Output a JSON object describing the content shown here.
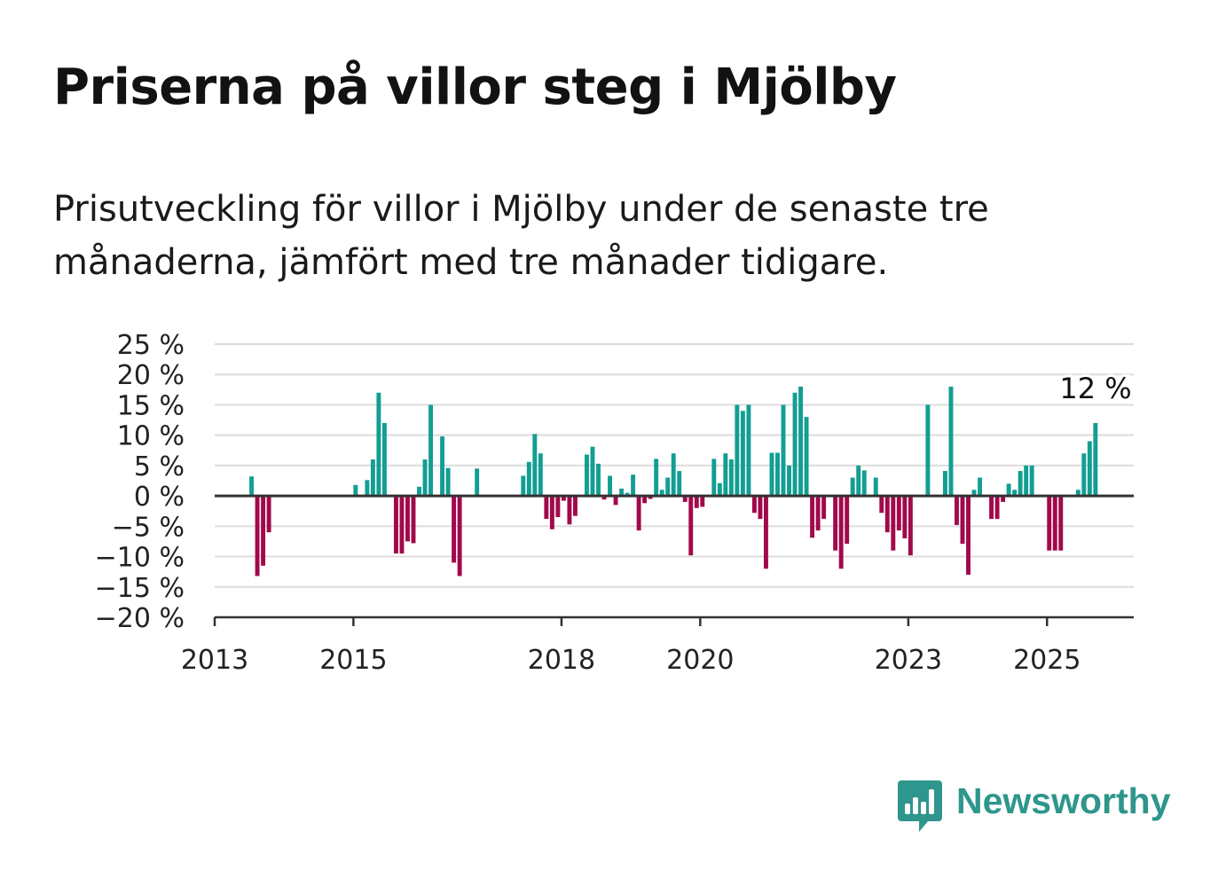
{
  "title": "Priserna på villor steg i Mjölby",
  "subtitle": "Prisutveckling för villor i Mjölby under de senaste tre månaderna, jämfört med tre månader tidigare.",
  "brand": {
    "name": "Newsworthy",
    "color": "#2e968c",
    "icon": "newsworthy-bar-chart-logo-icon"
  },
  "colors": {
    "positive": "#139e93",
    "negative": "#a1094a",
    "grid": "#dcdcdc",
    "axis": "#333333",
    "text": "#222222"
  },
  "chart_data": {
    "type": "bar",
    "title": "Priserna på villor steg i Mjölby",
    "xlabel": "",
    "ylabel": "",
    "ylim": [
      -20,
      25
    ],
    "yticks": [
      25,
      20,
      15,
      10,
      5,
      0,
      -5,
      -10,
      -15,
      -20
    ],
    "ytick_labels": [
      "25 %",
      "20 %",
      "15 %",
      "10 %",
      "5 %",
      "0 %",
      "−5 %",
      "−10 %",
      "−15 %",
      "−20 %"
    ],
    "xlim": [
      2013,
      2026.25
    ],
    "xticks": [
      2013,
      2015,
      2018,
      2020,
      2023,
      2025
    ],
    "xtick_labels": [
      "2013",
      "2015",
      "2018",
      "2020",
      "2023",
      "2025"
    ],
    "grid": true,
    "last_value_label": "12 %",
    "points": [
      {
        "x": "2013-07",
        "y": 3.2
      },
      {
        "x": "2013-08",
        "y": -13.2
      },
      {
        "x": "2013-09",
        "y": -11.5
      },
      {
        "x": "2013-10",
        "y": -6.0
      },
      {
        "x": "2015-01",
        "y": 1.8
      },
      {
        "x": "2015-03",
        "y": 2.6
      },
      {
        "x": "2015-04",
        "y": 6.0
      },
      {
        "x": "2015-05",
        "y": 17.0
      },
      {
        "x": "2015-06",
        "y": 12.0
      },
      {
        "x": "2015-08",
        "y": -9.5
      },
      {
        "x": "2015-09",
        "y": -9.5
      },
      {
        "x": "2015-10",
        "y": -7.5
      },
      {
        "x": "2015-11",
        "y": -7.8
      },
      {
        "x": "2015-12",
        "y": 1.5
      },
      {
        "x": "2016-01",
        "y": 6.0
      },
      {
        "x": "2016-02",
        "y": 15.0
      },
      {
        "x": "2016-04",
        "y": 9.8
      },
      {
        "x": "2016-05",
        "y": 4.6
      },
      {
        "x": "2016-06",
        "y": -11.0
      },
      {
        "x": "2016-07",
        "y": -13.2
      },
      {
        "x": "2016-10",
        "y": 4.5
      },
      {
        "x": "2017-06",
        "y": 3.3
      },
      {
        "x": "2017-07",
        "y": 5.6
      },
      {
        "x": "2017-08",
        "y": 10.2
      },
      {
        "x": "2017-09",
        "y": 7.0
      },
      {
        "x": "2017-10",
        "y": -3.8
      },
      {
        "x": "2017-11",
        "y": -5.5
      },
      {
        "x": "2017-12",
        "y": -3.5
      },
      {
        "x": "2018-01",
        "y": -0.8
      },
      {
        "x": "2018-02",
        "y": -4.7
      },
      {
        "x": "2018-03",
        "y": -3.3
      },
      {
        "x": "2018-05",
        "y": 6.8
      },
      {
        "x": "2018-06",
        "y": 8.1
      },
      {
        "x": "2018-07",
        "y": 5.3
      },
      {
        "x": "2018-08",
        "y": -0.6
      },
      {
        "x": "2018-09",
        "y": 3.3
      },
      {
        "x": "2018-10",
        "y": -1.5
      },
      {
        "x": "2018-11",
        "y": 1.2
      },
      {
        "x": "2018-12",
        "y": 0.5
      },
      {
        "x": "2019-01",
        "y": 3.5
      },
      {
        "x": "2019-02",
        "y": -5.7
      },
      {
        "x": "2019-03",
        "y": -1.2
      },
      {
        "x": "2019-04",
        "y": -0.5
      },
      {
        "x": "2019-05",
        "y": 6.1
      },
      {
        "x": "2019-06",
        "y": 1.0
      },
      {
        "x": "2019-07",
        "y": 3.0
      },
      {
        "x": "2019-08",
        "y": 7.0
      },
      {
        "x": "2019-09",
        "y": 4.1
      },
      {
        "x": "2019-10",
        "y": -1.0
      },
      {
        "x": "2019-11",
        "y": -9.8
      },
      {
        "x": "2019-12",
        "y": -2.0
      },
      {
        "x": "2020-01",
        "y": -1.8
      },
      {
        "x": "2020-03",
        "y": 6.1
      },
      {
        "x": "2020-04",
        "y": 2.1
      },
      {
        "x": "2020-05",
        "y": 7.0
      },
      {
        "x": "2020-06",
        "y": 6.0
      },
      {
        "x": "2020-07",
        "y": 15.0
      },
      {
        "x": "2020-08",
        "y": 14.0
      },
      {
        "x": "2020-09",
        "y": 15.0
      },
      {
        "x": "2020-10",
        "y": -2.8
      },
      {
        "x": "2020-11",
        "y": -3.8
      },
      {
        "x": "2020-12",
        "y": -12.0
      },
      {
        "x": "2021-01",
        "y": 7.1
      },
      {
        "x": "2021-02",
        "y": 7.1
      },
      {
        "x": "2021-03",
        "y": 15.0
      },
      {
        "x": "2021-04",
        "y": 5.0
      },
      {
        "x": "2021-05",
        "y": 17.0
      },
      {
        "x": "2021-06",
        "y": 18.0
      },
      {
        "x": "2021-07",
        "y": 13.0
      },
      {
        "x": "2021-08",
        "y": -6.9
      },
      {
        "x": "2021-09",
        "y": -5.7
      },
      {
        "x": "2021-10",
        "y": -3.8
      },
      {
        "x": "2021-12",
        "y": -9.0
      },
      {
        "x": "2022-01",
        "y": -12.0
      },
      {
        "x": "2022-02",
        "y": -7.9
      },
      {
        "x": "2022-03",
        "y": 3.0
      },
      {
        "x": "2022-04",
        "y": 5.0
      },
      {
        "x": "2022-05",
        "y": 4.2
      },
      {
        "x": "2022-07",
        "y": 3.0
      },
      {
        "x": "2022-08",
        "y": -2.8
      },
      {
        "x": "2022-09",
        "y": -6.0
      },
      {
        "x": "2022-10",
        "y": -9.0
      },
      {
        "x": "2022-11",
        "y": -5.7
      },
      {
        "x": "2022-12",
        "y": -7.0
      },
      {
        "x": "2023-01",
        "y": -9.8
      },
      {
        "x": "2023-04",
        "y": 15.0
      },
      {
        "x": "2023-07",
        "y": 4.1
      },
      {
        "x": "2023-08",
        "y": 18.0
      },
      {
        "x": "2023-09",
        "y": -4.8
      },
      {
        "x": "2023-10",
        "y": -7.9
      },
      {
        "x": "2023-11",
        "y": -13.0
      },
      {
        "x": "2023-12",
        "y": 1.0
      },
      {
        "x": "2024-01",
        "y": 3.0
      },
      {
        "x": "2024-03",
        "y": -3.8
      },
      {
        "x": "2024-04",
        "y": -3.8
      },
      {
        "x": "2024-05",
        "y": -1.0
      },
      {
        "x": "2024-06",
        "y": 2.0
      },
      {
        "x": "2024-07",
        "y": 1.0
      },
      {
        "x": "2024-08",
        "y": 4.1
      },
      {
        "x": "2024-09",
        "y": 5.0
      },
      {
        "x": "2024-10",
        "y": 5.0
      },
      {
        "x": "2025-01",
        "y": -9.0
      },
      {
        "x": "2025-02",
        "y": -9.0
      },
      {
        "x": "2025-03",
        "y": -9.0
      },
      {
        "x": "2025-06",
        "y": 1.0
      },
      {
        "x": "2025-07",
        "y": 7.0
      },
      {
        "x": "2025-08",
        "y": 9.0
      },
      {
        "x": "2025-09",
        "y": 12.0
      }
    ]
  }
}
